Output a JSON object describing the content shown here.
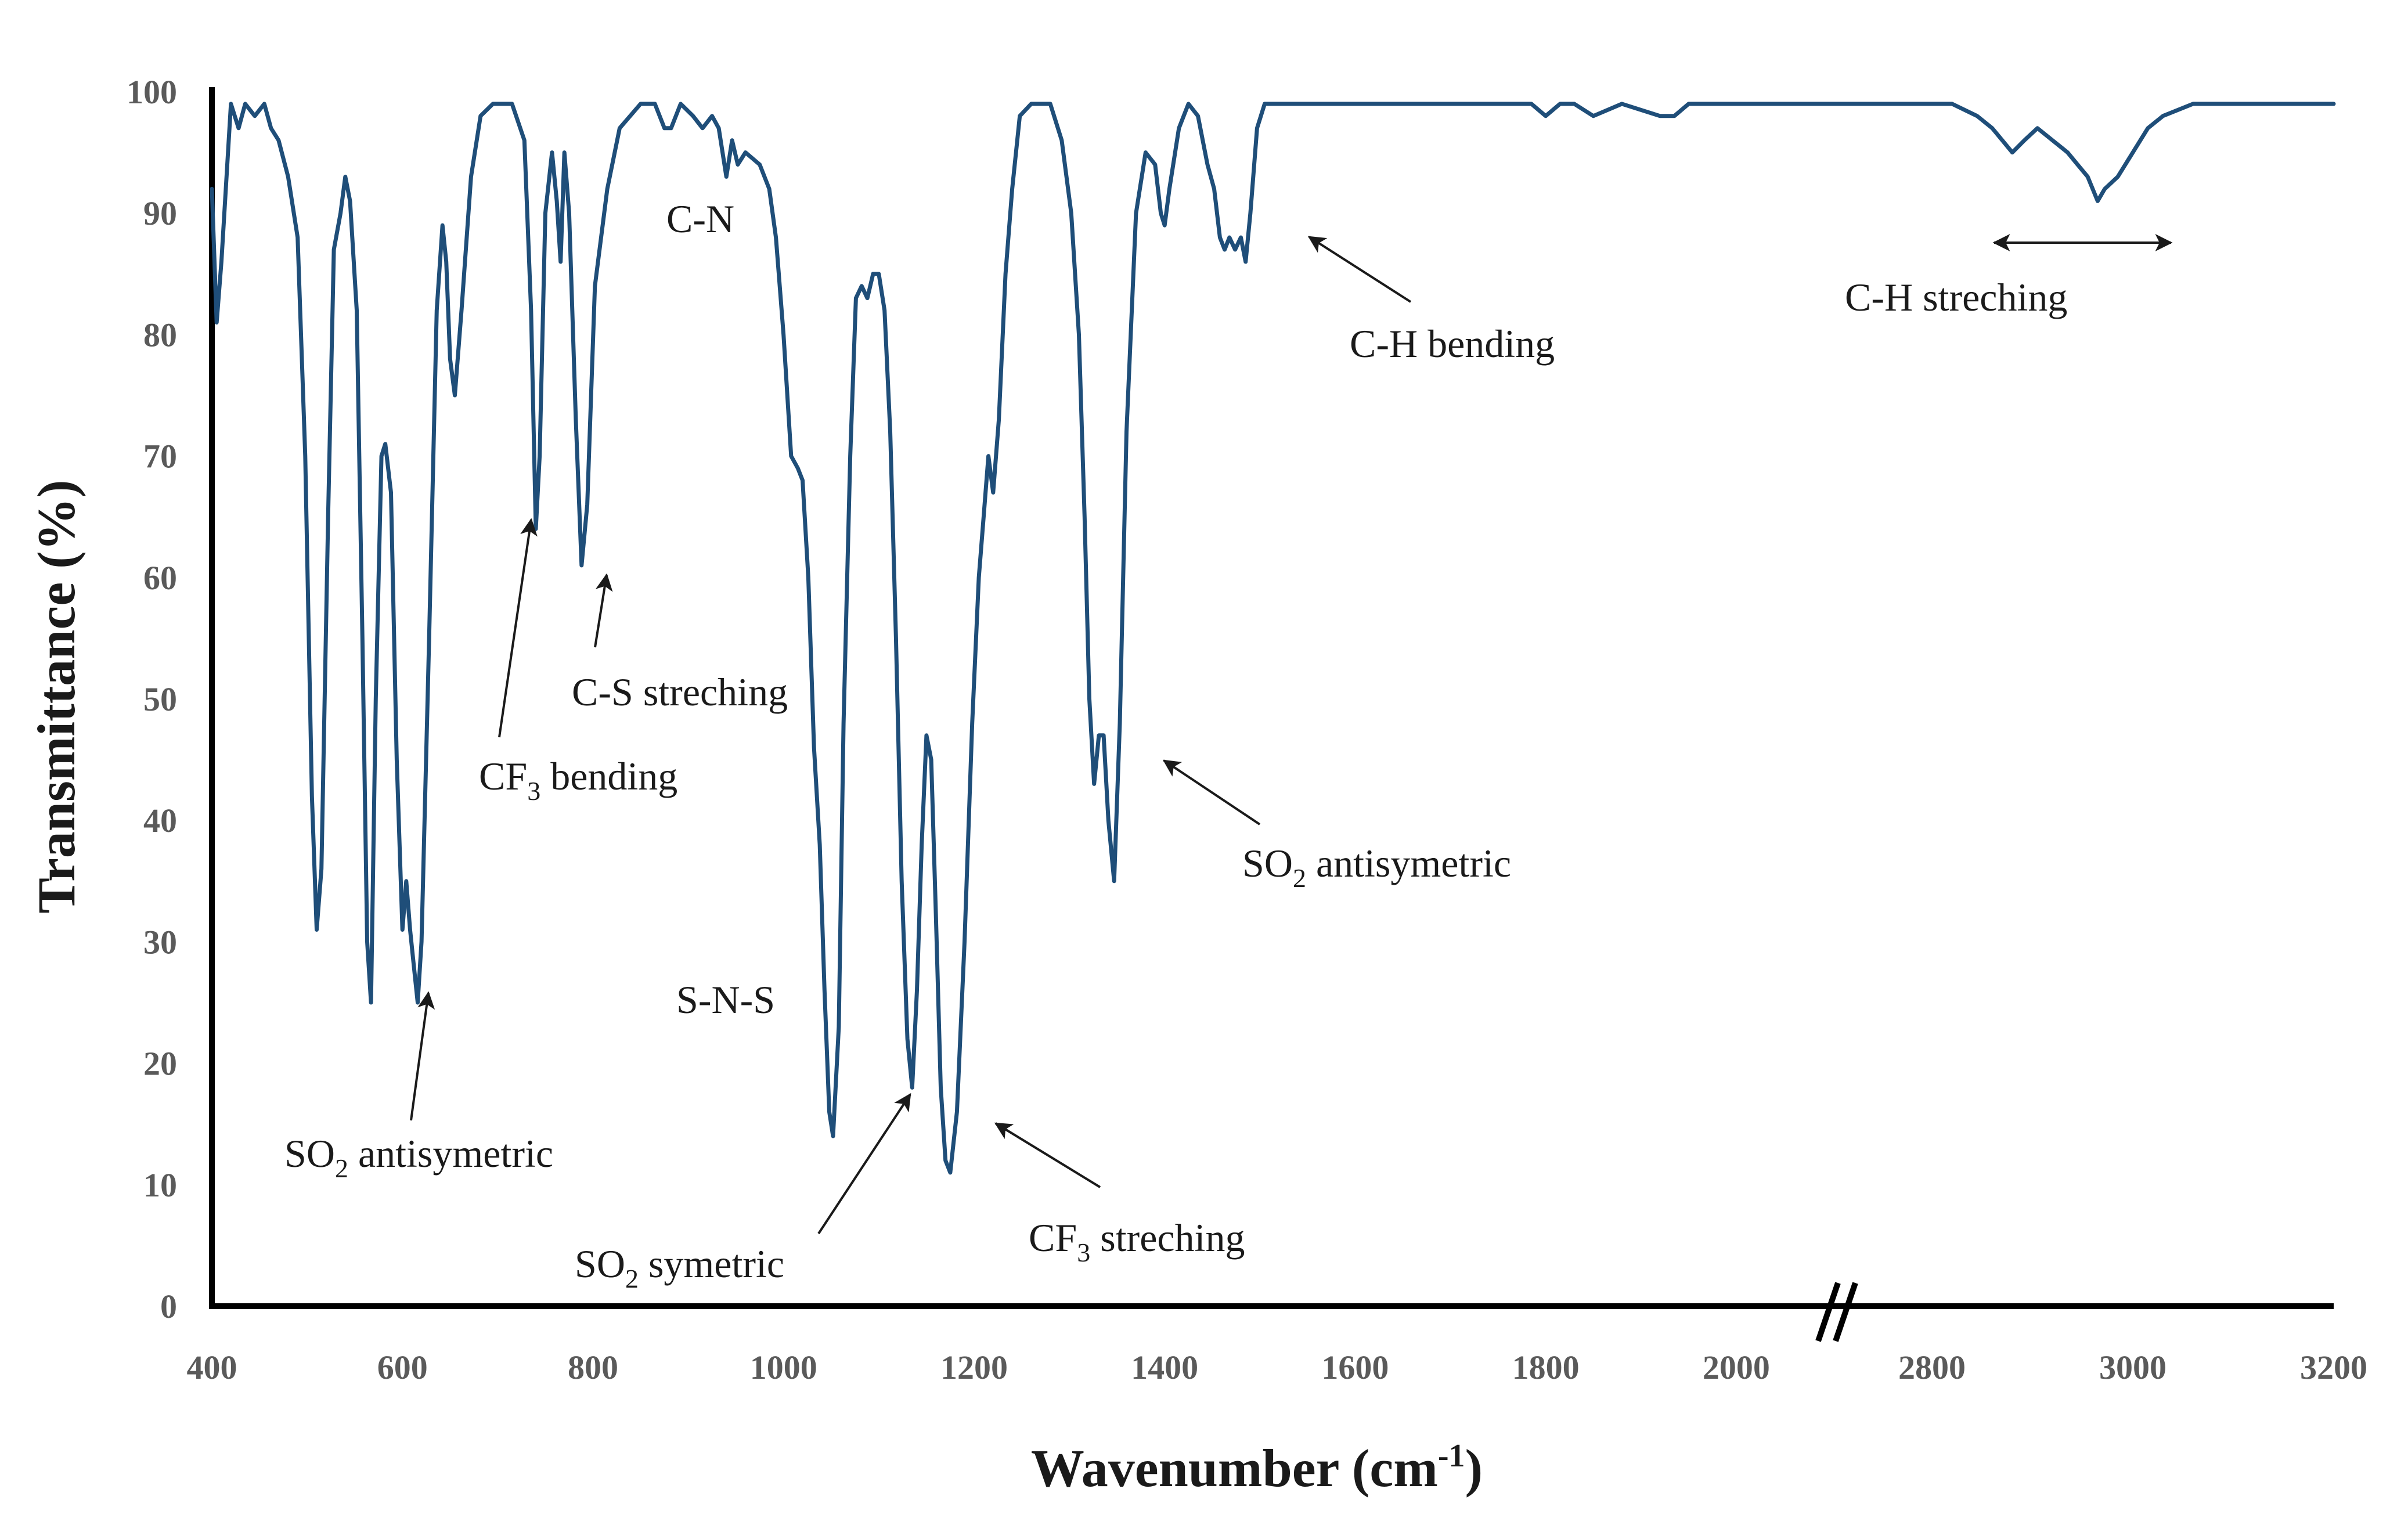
{
  "chart_data": {
    "type": "line",
    "title": "",
    "xlabel": "Wavenumber",
    "xlabel_unit_prefix": "(cm",
    "xlabel_unit_exp": "-1",
    "xlabel_unit_suffix": ")",
    "ylabel": "Transmittance  (%)",
    "ylim": [
      0,
      100
    ],
    "yticks": [
      0,
      10,
      20,
      30,
      40,
      50,
      60,
      70,
      80,
      90,
      100
    ],
    "xticks_left": [
      400,
      600,
      800,
      1000,
      1200,
      1400,
      1600,
      1800,
      2000
    ],
    "xticks_right": [
      2800,
      3000,
      3200
    ],
    "axis_break": {
      "from": 2100,
      "to": 2700
    },
    "line_color": "#1f4e79",
    "series": [
      {
        "name": "Spectrum",
        "points": [
          [
            400,
            92
          ],
          [
            405,
            81
          ],
          [
            410,
            86
          ],
          [
            420,
            99
          ],
          [
            428,
            97
          ],
          [
            435,
            99
          ],
          [
            445,
            98
          ],
          [
            455,
            99
          ],
          [
            462,
            97
          ],
          [
            470,
            96
          ],
          [
            480,
            93
          ],
          [
            490,
            88
          ],
          [
            498,
            70
          ],
          [
            505,
            42
          ],
          [
            510,
            31
          ],
          [
            515,
            36
          ],
          [
            522,
            65
          ],
          [
            528,
            87
          ],
          [
            535,
            90
          ],
          [
            540,
            93
          ],
          [
            545,
            91
          ],
          [
            552,
            82
          ],
          [
            558,
            55
          ],
          [
            563,
            30
          ],
          [
            567,
            25
          ],
          [
            572,
            50
          ],
          [
            578,
            70
          ],
          [
            582,
            71
          ],
          [
            588,
            67
          ],
          [
            594,
            45
          ],
          [
            600,
            31
          ],
          [
            604,
            35
          ],
          [
            608,
            31
          ],
          [
            612,
            28
          ],
          [
            616,
            25
          ],
          [
            620,
            30
          ],
          [
            628,
            55
          ],
          [
            636,
            82
          ],
          [
            642,
            89
          ],
          [
            646,
            86
          ],
          [
            650,
            78
          ],
          [
            655,
            75
          ],
          [
            662,
            82
          ],
          [
            672,
            93
          ],
          [
            682,
            98
          ],
          [
            695,
            99
          ],
          [
            715,
            99
          ],
          [
            728,
            96
          ],
          [
            735,
            82
          ],
          [
            740,
            64
          ],
          [
            744,
            70
          ],
          [
            750,
            90
          ],
          [
            757,
            95
          ],
          [
            762,
            91
          ],
          [
            766,
            86
          ],
          [
            770,
            95
          ],
          [
            775,
            90
          ],
          [
            782,
            73
          ],
          [
            788,
            61
          ],
          [
            794,
            66
          ],
          [
            802,
            84
          ],
          [
            815,
            92
          ],
          [
            828,
            97
          ],
          [
            850,
            99
          ],
          [
            865,
            99
          ],
          [
            875,
            97
          ],
          [
            882,
            97
          ],
          [
            892,
            99
          ],
          [
            905,
            98
          ],
          [
            915,
            97
          ],
          [
            925,
            98
          ],
          [
            932,
            97
          ],
          [
            940,
            93
          ],
          [
            946,
            96
          ],
          [
            952,
            94
          ],
          [
            960,
            95
          ],
          [
            975,
            94
          ],
          [
            985,
            92
          ],
          [
            992,
            88
          ],
          [
            1000,
            80
          ],
          [
            1008,
            70
          ],
          [
            1015,
            69
          ],
          [
            1020,
            68
          ],
          [
            1026,
            60
          ],
          [
            1032,
            46
          ],
          [
            1038,
            38
          ],
          [
            1043,
            26
          ],
          [
            1048,
            16
          ],
          [
            1052,
            14
          ],
          [
            1058,
            23
          ],
          [
            1063,
            48
          ],
          [
            1070,
            70
          ],
          [
            1076,
            83
          ],
          [
            1082,
            84
          ],
          [
            1088,
            83
          ],
          [
            1094,
            85
          ],
          [
            1100,
            85
          ],
          [
            1106,
            82
          ],
          [
            1112,
            72
          ],
          [
            1118,
            55
          ],
          [
            1124,
            35
          ],
          [
            1130,
            22
          ],
          [
            1135,
            18
          ],
          [
            1140,
            26
          ],
          [
            1145,
            38
          ],
          [
            1150,
            47
          ],
          [
            1155,
            45
          ],
          [
            1160,
            32
          ],
          [
            1165,
            18
          ],
          [
            1170,
            12
          ],
          [
            1175,
            11
          ],
          [
            1182,
            16
          ],
          [
            1190,
            30
          ],
          [
            1198,
            48
          ],
          [
            1205,
            60
          ],
          [
            1210,
            65
          ],
          [
            1215,
            70
          ],
          [
            1220,
            67
          ],
          [
            1226,
            73
          ],
          [
            1233,
            85
          ],
          [
            1240,
            92
          ],
          [
            1248,
            98
          ],
          [
            1260,
            99
          ],
          [
            1280,
            99
          ],
          [
            1292,
            96
          ],
          [
            1302,
            90
          ],
          [
            1310,
            80
          ],
          [
            1316,
            65
          ],
          [
            1321,
            50
          ],
          [
            1326,
            43
          ],
          [
            1331,
            47
          ],
          [
            1336,
            47
          ],
          [
            1341,
            40
          ],
          [
            1347,
            35
          ],
          [
            1353,
            48
          ],
          [
            1360,
            72
          ],
          [
            1370,
            90
          ],
          [
            1380,
            95
          ],
          [
            1390,
            94
          ],
          [
            1396,
            90
          ],
          [
            1400,
            89
          ],
          [
            1405,
            92
          ],
          [
            1415,
            97
          ],
          [
            1425,
            99
          ],
          [
            1435,
            98
          ],
          [
            1440,
            96
          ],
          [
            1445,
            94
          ],
          [
            1452,
            92
          ],
          [
            1458,
            88
          ],
          [
            1463,
            87
          ],
          [
            1468,
            88
          ],
          [
            1474,
            87
          ],
          [
            1480,
            88
          ],
          [
            1485,
            86
          ],
          [
            1490,
            90
          ],
          [
            1497,
            97
          ],
          [
            1505,
            99
          ],
          [
            1550,
            99
          ],
          [
            1600,
            99
          ],
          [
            1650,
            99
          ],
          [
            1700,
            99
          ],
          [
            1760,
            99
          ],
          [
            1785,
            99
          ],
          [
            1800,
            98
          ],
          [
            1815,
            99
          ],
          [
            1830,
            99
          ],
          [
            1850,
            98
          ],
          [
            1880,
            99
          ],
          [
            1920,
            98
          ],
          [
            1935,
            98
          ],
          [
            1950,
            99
          ],
          [
            1980,
            99
          ],
          [
            2000,
            99
          ],
          [
            2030,
            99
          ],
          [
            2060,
            99
          ],
          [
            2100,
            99
          ],
          [
            2700,
            99
          ],
          [
            2760,
            99
          ],
          [
            2820,
            99
          ],
          [
            2845,
            98
          ],
          [
            2860,
            97
          ],
          [
            2870,
            96
          ],
          [
            2880,
            95
          ],
          [
            2892,
            96
          ],
          [
            2905,
            97
          ],
          [
            2920,
            96
          ],
          [
            2935,
            95
          ],
          [
            2945,
            94
          ],
          [
            2955,
            93
          ],
          [
            2965,
            91
          ],
          [
            2972,
            92
          ],
          [
            2985,
            93
          ],
          [
            3000,
            95
          ],
          [
            3015,
            97
          ],
          [
            3030,
            98
          ],
          [
            3060,
            99
          ],
          [
            3120,
            99
          ],
          [
            3160,
            99
          ],
          [
            3200,
            99
          ]
        ]
      }
    ],
    "annotations": [
      {
        "id": "cn",
        "text": "C-N"
      },
      {
        "id": "chbend",
        "text": "C-H bending"
      },
      {
        "id": "chstretch",
        "text": "C-H streching"
      },
      {
        "id": "cs",
        "text": "C-S streching"
      },
      {
        "id": "cf3bend_a",
        "text": "CF",
        "sub": "3",
        "rest": " bending"
      },
      {
        "id": "sns",
        "text": "S-N-S"
      },
      {
        "id": "so2anti_right_a",
        "text": "SO",
        "sub": "2",
        "rest": " antisymetric"
      },
      {
        "id": "so2anti_left_a",
        "text": "SO",
        "sub": "2",
        "rest": " antisymetric"
      },
      {
        "id": "so2sym_a",
        "text": "SO",
        "sub": "2",
        "rest": " symetric"
      },
      {
        "id": "cf3str_a",
        "text": "CF",
        "sub": "3",
        "rest": " streching"
      }
    ]
  }
}
